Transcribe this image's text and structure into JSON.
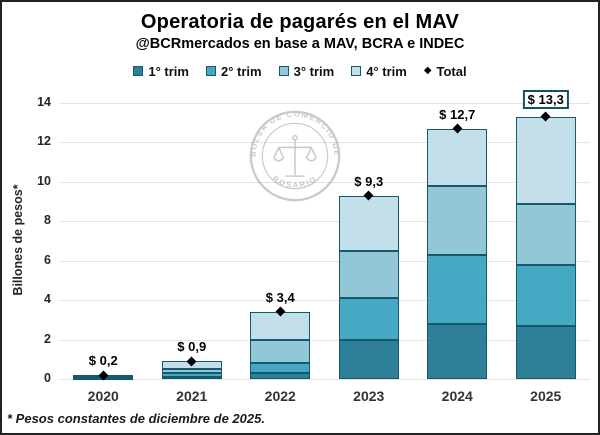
{
  "header": {
    "title": "Operatoria de pagarés en el MAV",
    "subtitle": "@BCRmercados en base a MAV, BCRA e INDEC"
  },
  "legend": {
    "items": [
      {
        "label": "1° trim",
        "color": "#2e7f98",
        "type": "square"
      },
      {
        "label": "2° trim",
        "color": "#46a9c3",
        "type": "square"
      },
      {
        "label": "3° trim",
        "color": "#92c7d8",
        "type": "square"
      },
      {
        "label": "4° trim",
        "color": "#c3e0ea",
        "type": "square"
      },
      {
        "label": "Total",
        "color": "#000000",
        "type": "diamond"
      }
    ]
  },
  "chart_data": {
    "type": "bar",
    "stacked": true,
    "title": "Operatoria de pagarés en el MAV",
    "categories": [
      "2020",
      "2021",
      "2022",
      "2023",
      "2024",
      "2025"
    ],
    "series": [
      {
        "name": "1° trim",
        "color": "#2e7f98",
        "values": [
          0.05,
          0.1,
          0.3,
          2.0,
          2.8,
          2.7
        ]
      },
      {
        "name": "2° trim",
        "color": "#46a9c3",
        "values": [
          0.05,
          0.2,
          0.5,
          2.1,
          3.5,
          3.1
        ]
      },
      {
        "name": "3° trim",
        "color": "#92c7d8",
        "values": [
          0.05,
          0.2,
          1.2,
          2.4,
          3.5,
          3.1
        ]
      },
      {
        "name": "4° trim",
        "color": "#c3e0ea",
        "values": [
          0.05,
          0.4,
          1.4,
          2.8,
          2.9,
          4.4
        ]
      }
    ],
    "totals": {
      "name": "Total",
      "marker": "diamond",
      "marker_color": "#000000",
      "values": [
        0.2,
        0.9,
        3.4,
        9.3,
        12.7,
        13.3
      ],
      "labels": [
        "$ 0,2",
        "$ 0,9",
        "$ 3,4",
        "$ 9,3",
        "$ 12,7",
        "$ 13,3"
      ],
      "highlighted_index": 5,
      "box_border_color": "#155361"
    },
    "xlabel": "",
    "ylabel": "Billones de pesos*",
    "ylim": [
      0,
      14
    ],
    "yticks": [
      0,
      2,
      4,
      6,
      8,
      10,
      12,
      14
    ],
    "grid": true,
    "gridline_color": "#e4e4e4",
    "segment_border_color": "#155a6c",
    "legend_position": "top"
  },
  "watermark": {
    "text_top": "BOLSA DE COMERCIO DE",
    "text_bottom": "ROSARIO",
    "color": "#a6a6a6"
  },
  "footnote": "* Pesos constantes de diciembre de 2025."
}
